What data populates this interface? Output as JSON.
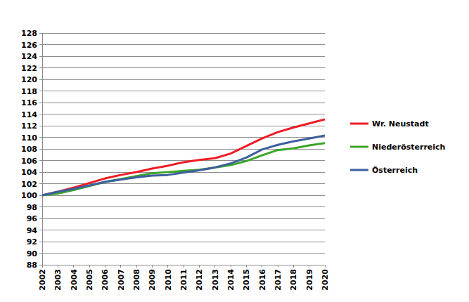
{
  "chart_data": {
    "type": "line",
    "categories": [
      "2002",
      "2003",
      "2004",
      "2005",
      "2006",
      "2007",
      "2008",
      "2009",
      "2010",
      "2011",
      "2012",
      "2013",
      "2014",
      "2015",
      "2016",
      "2017",
      "2018",
      "2019",
      "2020"
    ],
    "series": [
      {
        "name": "Wr. Neustadt",
        "color": "#ee1c25",
        "values": [
          100,
          100.6,
          101.3,
          102.1,
          102.9,
          103.5,
          104.0,
          104.6,
          105.1,
          105.7,
          106.1,
          106.4,
          107.2,
          108.5,
          109.8,
          110.9,
          111.7,
          112.4,
          113.1
        ]
      },
      {
        "name": "Niederösterreich",
        "color": "#3ca428",
        "values": [
          100,
          100.3,
          100.9,
          101.6,
          102.3,
          102.8,
          103.3,
          103.8,
          104.0,
          104.2,
          104.4,
          104.8,
          105.2,
          105.9,
          106.9,
          107.8,
          108.1,
          108.6,
          109.0
        ]
      },
      {
        "name": "Österreich",
        "color": "#3d5f9e",
        "values": [
          100,
          100.6,
          101.1,
          101.7,
          102.3,
          102.7,
          103.1,
          103.4,
          103.5,
          103.9,
          104.3,
          104.8,
          105.5,
          106.5,
          107.9,
          108.7,
          109.3,
          109.8,
          110.3
        ]
      }
    ],
    "ylim": [
      88,
      128
    ],
    "yticks": [
      88,
      90,
      92,
      94,
      96,
      98,
      100,
      102,
      104,
      106,
      108,
      110,
      112,
      114,
      116,
      118,
      120,
      122,
      124,
      126,
      128
    ],
    "grid": true,
    "legend": "right"
  }
}
